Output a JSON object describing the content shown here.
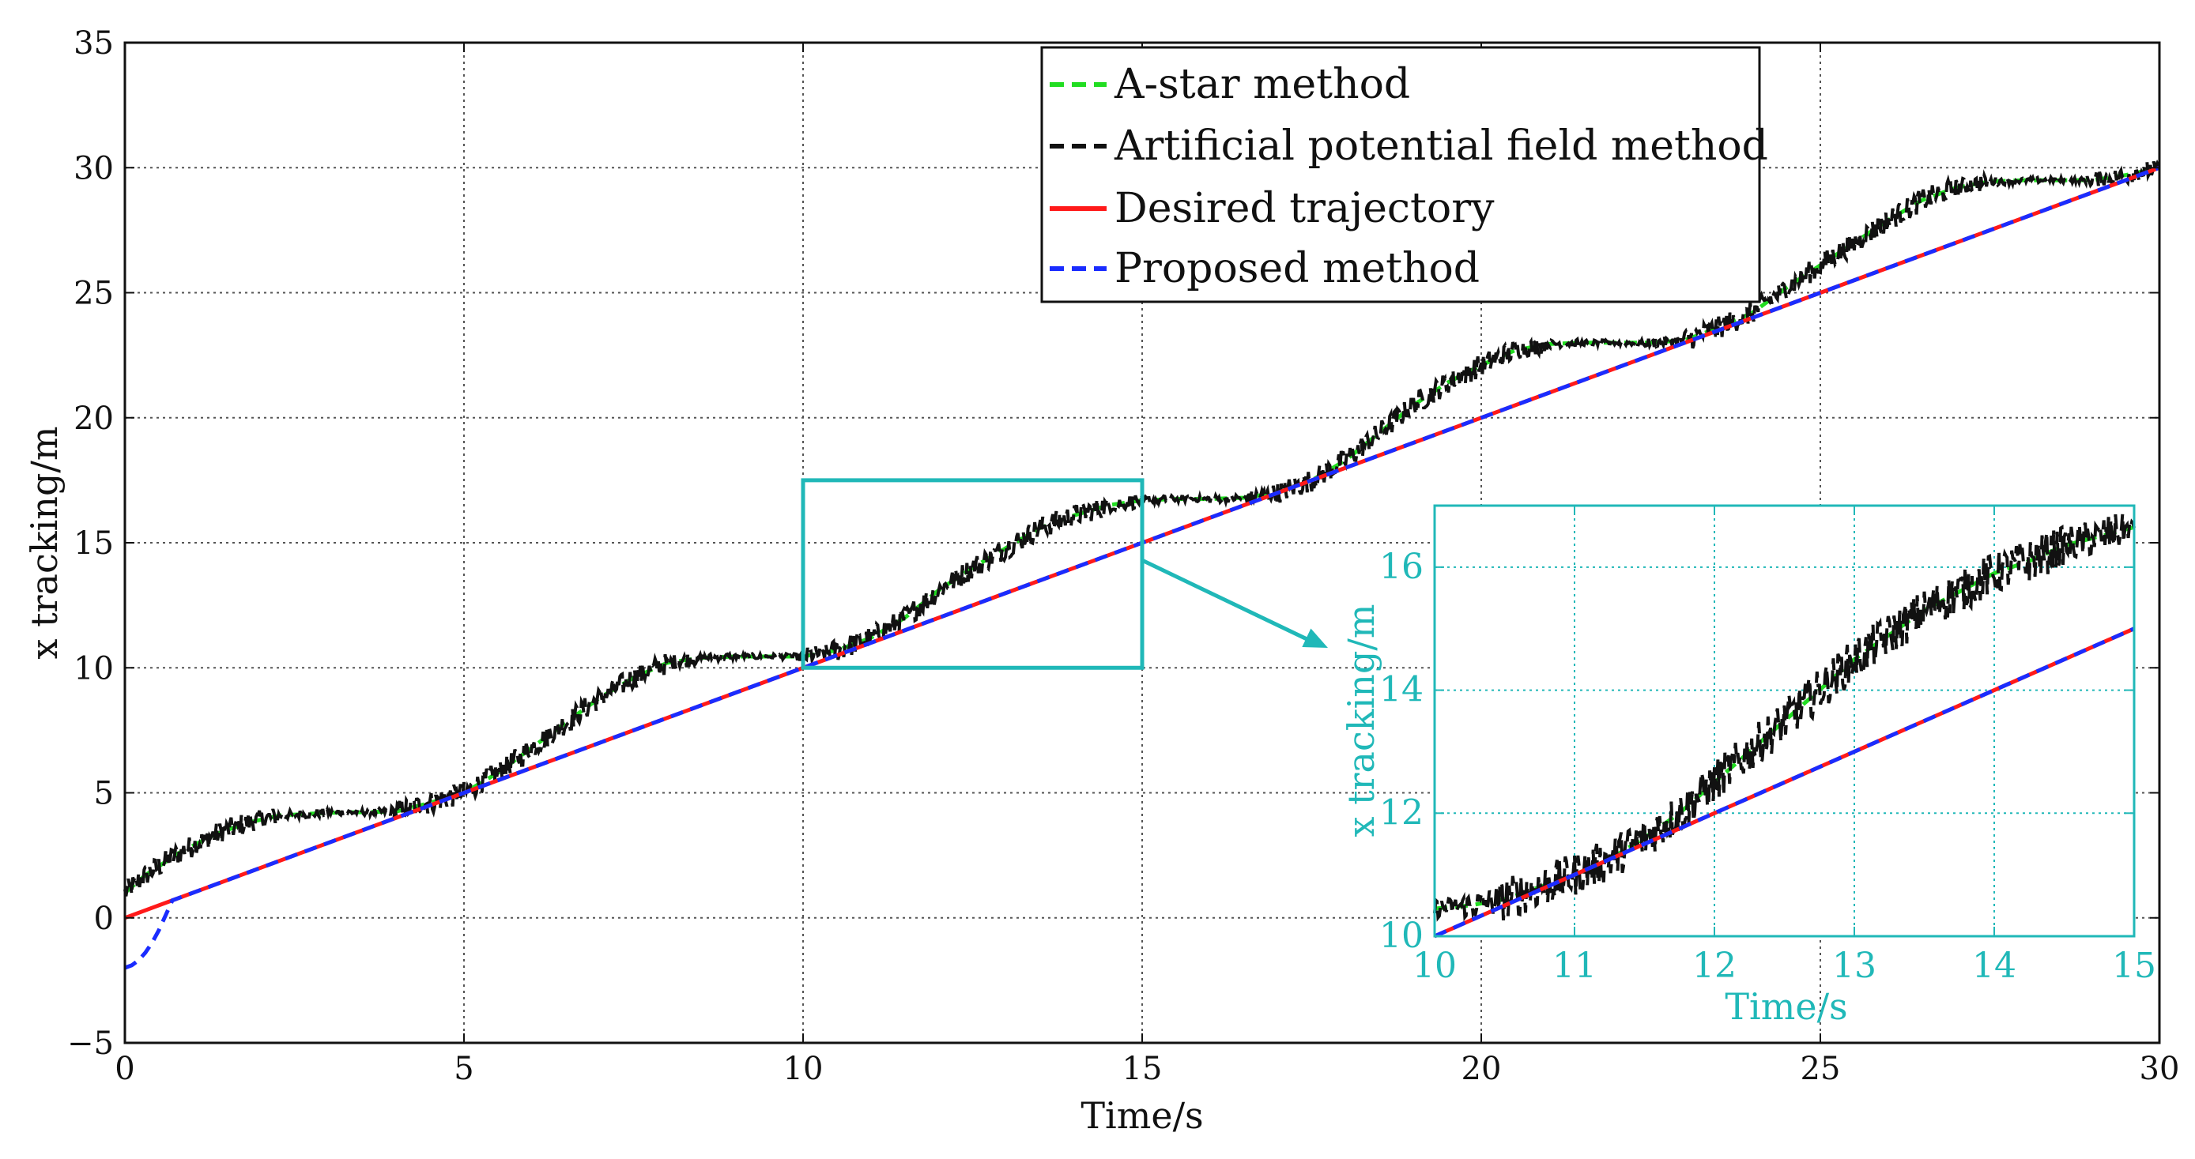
{
  "colors": {
    "astar": "#22dd22",
    "apf": "#111111",
    "desired": "#ff1a1a",
    "proposed": "#1a2cff",
    "inset": "#20b8b8",
    "grid": "#555555"
  },
  "chart_data": [
    {
      "id": "main",
      "type": "line",
      "title": "",
      "xlabel": "Time/s",
      "ylabel": "x tracking/m",
      "xlim": [
        0,
        30
      ],
      "ylim": [
        -5,
        35
      ],
      "xticks": [
        0,
        5,
        10,
        15,
        20,
        25,
        30
      ],
      "yticks": [
        -5,
        0,
        5,
        10,
        15,
        20,
        25,
        30,
        35
      ],
      "ytick_labels": [
        "−5",
        "0",
        "5",
        "10",
        "15",
        "20",
        "25",
        "30",
        "35"
      ],
      "grid": true,
      "legend": "top-center",
      "series": [
        {
          "name": "A-star method",
          "style": "dashed",
          "color_key": "astar",
          "x": [
            0,
            0.3,
            0.8,
            1.3,
            1.8,
            2.3,
            3.0,
            4.0,
            4.5,
            5.0,
            5.5,
            6.0,
            6.5,
            7.0,
            7.5,
            8.0,
            8.5,
            9.0,
            9.5,
            10.0,
            10.5,
            11.0,
            11.5,
            12.0,
            12.5,
            13.0,
            13.5,
            14.0,
            14.5,
            15.0,
            15.5,
            16.0,
            16.5,
            17.0,
            17.5,
            18.0,
            18.5,
            19.0,
            19.5,
            20.0,
            20.5,
            21.0,
            21.5,
            22.0,
            22.5,
            23.0,
            23.5,
            24.0,
            24.5,
            25.0,
            25.5,
            26.0,
            26.5,
            27.0,
            27.5,
            28.0,
            28.5,
            29.0,
            29.5,
            30.0
          ],
          "y": [
            1.0,
            1.7,
            2.6,
            3.3,
            3.8,
            4.1,
            4.2,
            4.25,
            4.6,
            5.0,
            5.8,
            6.8,
            7.8,
            8.8,
            9.6,
            10.2,
            10.4,
            10.45,
            10.45,
            10.45,
            10.7,
            11.2,
            12.0,
            13.1,
            14.0,
            14.8,
            15.6,
            16.1,
            16.5,
            16.7,
            16.75,
            16.75,
            16.8,
            17.0,
            17.5,
            18.3,
            19.4,
            20.5,
            21.4,
            22.1,
            22.7,
            22.95,
            23.0,
            23.0,
            23.0,
            23.1,
            23.6,
            24.2,
            25.2,
            26.1,
            27.0,
            27.9,
            28.7,
            29.2,
            29.45,
            29.5,
            29.5,
            29.5,
            29.7,
            30.0
          ]
        },
        {
          "name": "Artificial potential field method",
          "style": "dashed-noisy",
          "color_key": "apf",
          "x": [
            0,
            0.3,
            0.8,
            1.3,
            1.8,
            2.3,
            3.0,
            4.0,
            4.5,
            5.0,
            5.5,
            6.0,
            6.5,
            7.0,
            7.5,
            8.0,
            8.5,
            9.0,
            9.5,
            10.0,
            10.5,
            11.0,
            11.5,
            12.0,
            12.5,
            13.0,
            13.5,
            14.0,
            14.5,
            15.0,
            15.5,
            16.0,
            16.5,
            17.0,
            17.5,
            18.0,
            18.5,
            19.0,
            19.5,
            20.0,
            20.5,
            21.0,
            21.5,
            22.0,
            22.5,
            23.0,
            23.5,
            24.0,
            24.5,
            25.0,
            25.5,
            26.0,
            26.5,
            27.0,
            27.5,
            28.0,
            28.5,
            29.0,
            29.5,
            30.0
          ],
          "y": [
            1.0,
            1.7,
            2.6,
            3.3,
            3.8,
            4.1,
            4.2,
            4.25,
            4.6,
            5.0,
            5.8,
            6.8,
            7.8,
            8.8,
            9.6,
            10.2,
            10.4,
            10.45,
            10.45,
            10.45,
            10.7,
            11.2,
            12.0,
            13.1,
            14.0,
            14.8,
            15.6,
            16.1,
            16.5,
            16.7,
            16.75,
            16.75,
            16.8,
            17.0,
            17.5,
            18.3,
            19.4,
            20.5,
            21.4,
            22.1,
            22.7,
            22.95,
            23.0,
            23.0,
            23.0,
            23.1,
            23.6,
            24.2,
            25.2,
            26.1,
            27.0,
            27.9,
            28.7,
            29.2,
            29.45,
            29.5,
            29.5,
            29.5,
            29.7,
            30.0
          ],
          "noise_amplitude": 0.45
        },
        {
          "name": "Desired trajectory",
          "style": "solid",
          "color_key": "desired",
          "x": [
            0,
            0.7,
            30
          ],
          "y": [
            0,
            0.7,
            30
          ]
        },
        {
          "name": "Proposed method",
          "style": "dashed",
          "color_key": "proposed",
          "x": [
            0,
            0.1,
            0.2,
            0.3,
            0.4,
            0.5,
            0.6,
            0.7,
            30
          ],
          "y": [
            -2.0,
            -1.9,
            -1.7,
            -1.4,
            -1.0,
            -0.5,
            0.1,
            0.7,
            30
          ]
        }
      ]
    },
    {
      "id": "inset",
      "type": "line",
      "title": "",
      "xlabel": "Time/s",
      "ylabel": "x tracking/m",
      "xlim": [
        10,
        15
      ],
      "ylim": [
        10,
        17
      ],
      "xticks": [
        10,
        11,
        12,
        13,
        14,
        15
      ],
      "yticks": [
        10,
        12,
        14,
        16
      ],
      "grid": true,
      "zoom_region": {
        "x": [
          10,
          15
        ],
        "y": [
          10,
          17.5
        ]
      },
      "series": [
        {
          "name": "A-star method",
          "style": "dashed",
          "color_key": "astar",
          "x": [
            10.0,
            10.25,
            10.5,
            10.75,
            11.0,
            11.25,
            11.5,
            11.75,
            12.0,
            12.25,
            12.5,
            12.75,
            13.0,
            13.25,
            13.5,
            13.75,
            14.0,
            14.25,
            14.5,
            14.75,
            15.0
          ],
          "y": [
            10.45,
            10.5,
            10.6,
            10.8,
            11.0,
            11.25,
            11.6,
            12.0,
            12.5,
            13.0,
            13.5,
            14.0,
            14.5,
            14.9,
            15.3,
            15.6,
            15.9,
            16.1,
            16.35,
            16.5,
            16.65
          ]
        },
        {
          "name": "Artificial potential field method",
          "style": "dashed-noisy",
          "color_key": "apf",
          "x": [
            10.0,
            10.25,
            10.5,
            10.75,
            11.0,
            11.25,
            11.5,
            11.75,
            12.0,
            12.25,
            12.5,
            12.75,
            13.0,
            13.25,
            13.5,
            13.75,
            14.0,
            14.25,
            14.5,
            14.75,
            15.0
          ],
          "y": [
            10.45,
            10.5,
            10.6,
            10.8,
            11.0,
            11.25,
            11.6,
            12.0,
            12.5,
            13.0,
            13.5,
            14.0,
            14.5,
            14.9,
            15.3,
            15.6,
            15.9,
            16.1,
            16.35,
            16.5,
            16.65
          ],
          "noise_amplitude": 0.35
        },
        {
          "name": "Desired trajectory",
          "style": "solid",
          "color_key": "desired",
          "x": [
            10,
            15
          ],
          "y": [
            10,
            15
          ]
        },
        {
          "name": "Proposed method",
          "style": "dashed",
          "color_key": "proposed",
          "x": [
            10,
            15
          ],
          "y": [
            10,
            15
          ]
        }
      ]
    }
  ]
}
